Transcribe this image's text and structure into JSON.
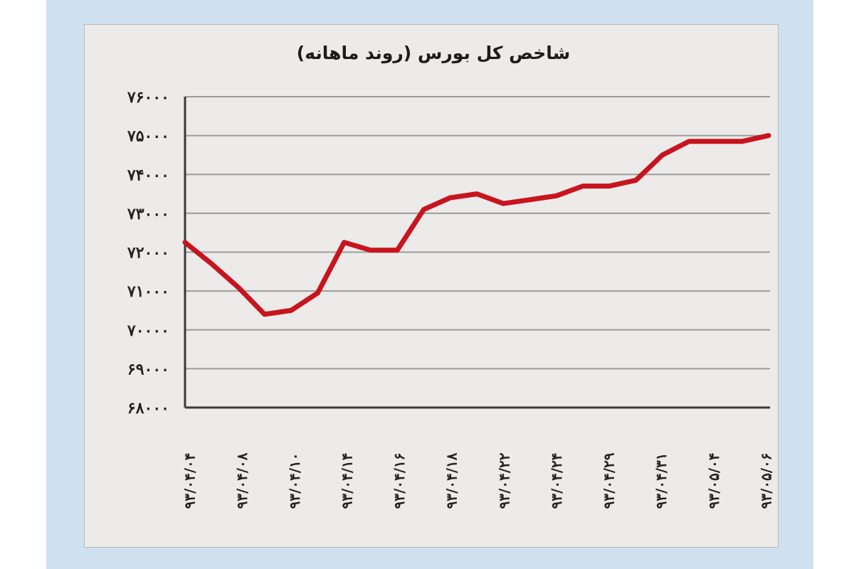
{
  "colors": {
    "frame": "#cfe0ef",
    "panel": "#ecebe9",
    "line": "#c8141e",
    "grid": "#9c9c9c",
    "axis": "#3a3a3a"
  },
  "chart_data": {
    "type": "line",
    "title": "شاخص کل بورس (روند ماهانه)",
    "xlabel": "",
    "ylabel": "",
    "ylim": [
      68000,
      76000
    ],
    "y_ticks": [
      76000,
      75000,
      74000,
      73000,
      72000,
      71000,
      70000,
      69000,
      68000
    ],
    "y_tick_labels": [
      "۷۶۰۰۰",
      "۷۵۰۰۰",
      "۷۴۰۰۰",
      "۷۳۰۰۰",
      "۷۲۰۰۰",
      "۷۱۰۰۰",
      "۷۰۰۰۰",
      "۶۹۰۰۰",
      "۶۸۰۰۰"
    ],
    "grid": true,
    "x_tick_labels": [
      "۹۳/۰۴/۰۴",
      "۹۳/۰۴/۰۸",
      "۹۳/۰۴/۱۰",
      "۹۳/۰۴/۱۴",
      "۹۳/۰۴/۱۶",
      "۹۳/۰۴/۱۸",
      "۹۳/۰۴/۲۲",
      "۹۳/۰۴/۲۴",
      "۹۳/۰۴/۲۹",
      "۹۳/۰۴/۳۱",
      "۹۳/۰۵/۰۴",
      "۹۳/۰۵/۰۶"
    ],
    "series": [
      {
        "values": [
          72250,
          71700,
          71100,
          70400,
          70500,
          70950,
          72250,
          72050,
          72050,
          73100,
          73400,
          73500,
          73250,
          73350,
          73450,
          73700,
          73700,
          73850,
          74500,
          74850,
          74850,
          74850,
          75000
        ]
      }
    ]
  }
}
